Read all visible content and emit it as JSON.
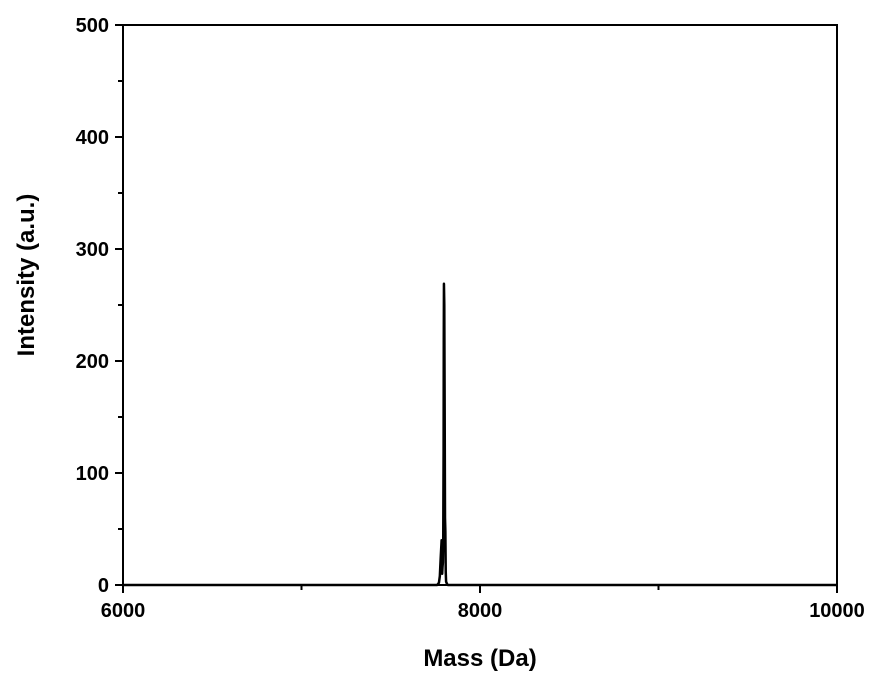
{
  "chart_data": {
    "type": "line",
    "title": "",
    "xlabel": "Mass (Da)",
    "ylabel": "Intensity (a.u.)",
    "xlim": [
      6000,
      10000
    ],
    "ylim": [
      0,
      500
    ],
    "x_ticks": [
      6000,
      8000,
      10000
    ],
    "x_minor_ticks": [
      7000,
      9000
    ],
    "y_ticks": [
      0,
      100,
      200,
      300,
      400,
      500
    ],
    "y_minor_ticks": [
      50,
      150,
      250,
      350,
      450
    ],
    "grid": false,
    "legend": "none",
    "series": [
      {
        "color": "#000000",
        "x": [
          6000,
          7760,
          7765,
          7770,
          7775,
          7780,
          7785,
          7788,
          7790,
          7792,
          7794,
          7796,
          7797,
          7798,
          7800,
          7802,
          7804,
          7806,
          7808,
          7810,
          7815,
          7820,
          8000,
          10000
        ],
        "y": [
          0,
          0,
          1,
          2,
          8,
          25,
          40,
          10,
          16,
          20,
          40,
          120,
          220,
          269,
          250,
          160,
          60,
          48,
          12,
          3,
          1,
          0,
          0,
          0
        ]
      }
    ]
  }
}
